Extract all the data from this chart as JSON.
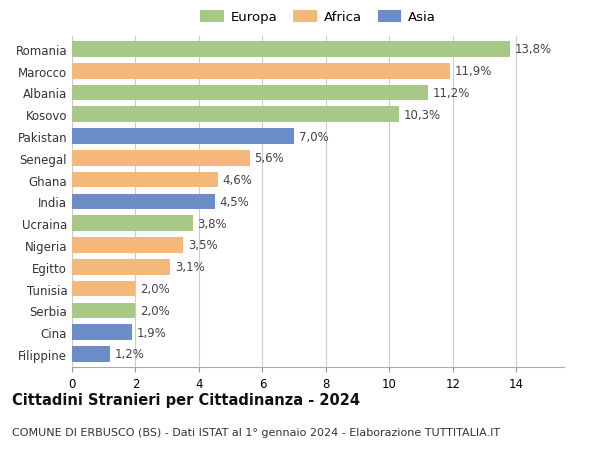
{
  "categories": [
    "Filippine",
    "Cina",
    "Serbia",
    "Tunisia",
    "Egitto",
    "Nigeria",
    "Ucraina",
    "India",
    "Ghana",
    "Senegal",
    "Pakistan",
    "Kosovo",
    "Albania",
    "Marocco",
    "Romania"
  ],
  "values": [
    1.2,
    1.9,
    2.0,
    2.0,
    3.1,
    3.5,
    3.8,
    4.5,
    4.6,
    5.6,
    7.0,
    10.3,
    11.2,
    11.9,
    13.8
  ],
  "labels": [
    "1,2%",
    "1,9%",
    "2,0%",
    "2,0%",
    "3,1%",
    "3,5%",
    "3,8%",
    "4,5%",
    "4,6%",
    "5,6%",
    "7,0%",
    "10,3%",
    "11,2%",
    "11,9%",
    "13,8%"
  ],
  "colors": [
    "#6b8ec9",
    "#6b8ec9",
    "#a8c888",
    "#f4b87a",
    "#f4b87a",
    "#f4b87a",
    "#a8c888",
    "#6b8ec9",
    "#f4b87a",
    "#f4b87a",
    "#6b8ec9",
    "#a8c888",
    "#a8c888",
    "#f4b87a",
    "#a8c888"
  ],
  "legend_labels": [
    "Europa",
    "Africa",
    "Asia"
  ],
  "legend_colors": [
    "#a8c888",
    "#f4b87a",
    "#6b8ec9"
  ],
  "title": "Cittadini Stranieri per Cittadinanza - 2024",
  "subtitle": "COMUNE DI ERBUSCO (BS) - Dati ISTAT al 1° gennaio 2024 - Elaborazione TUTTITALIA.IT",
  "xlim": [
    0,
    15.5
  ],
  "xticks": [
    0,
    2,
    4,
    6,
    8,
    10,
    12,
    14
  ],
  "bar_height": 0.72,
  "background_color": "#ffffff",
  "grid_color": "#cccccc",
  "label_fontsize": 8.5,
  "title_fontsize": 10.5,
  "subtitle_fontsize": 8,
  "ylabel_fontsize": 8.5,
  "tick_fontsize": 8.5,
  "legend_fontsize": 9.5
}
